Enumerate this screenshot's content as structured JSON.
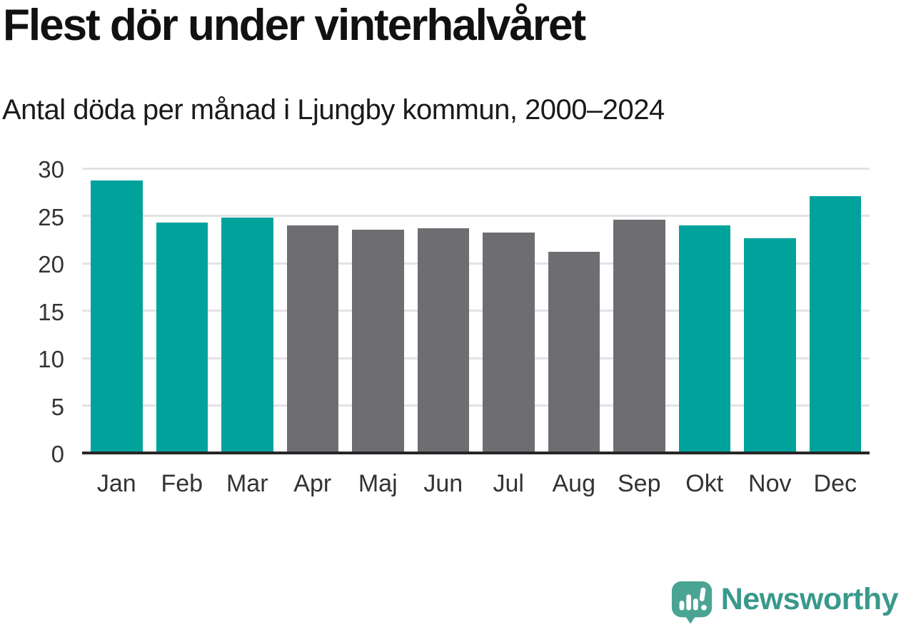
{
  "chart_data": {
    "type": "bar",
    "title": "Flest dör under vinterhalvåret",
    "subtitle": "Antal döda per månad i Ljungby kommun, 2000–2024",
    "categories": [
      "Jan",
      "Feb",
      "Mar",
      "Apr",
      "Maj",
      "Jun",
      "Jul",
      "Aug",
      "Sep",
      "Okt",
      "Nov",
      "Dec"
    ],
    "values": [
      28.7,
      24.3,
      24.8,
      24.0,
      23.5,
      23.7,
      23.2,
      21.2,
      24.6,
      24.0,
      22.6,
      27.1
    ],
    "bar_color_keys": [
      "winter",
      "winter",
      "winter",
      "summer",
      "summer",
      "summer",
      "summer",
      "summer",
      "summer",
      "winter",
      "winter",
      "winter"
    ],
    "palette": {
      "winter": "#00a39b",
      "summer": "#6e6e72"
    },
    "xlabel": "",
    "ylabel": "",
    "ylim": [
      0,
      30
    ],
    "yticks": [
      0,
      5,
      10,
      15,
      20,
      25,
      30
    ],
    "grid": true,
    "legend_position": "none",
    "gridline_color": "#e3e3e3",
    "axis_line_color": "#262626",
    "tick_label_color": "#333333"
  },
  "footer": {
    "brand": "Newsworthy",
    "brand_color": "#39998b",
    "icon": "newsworthy-logo-icon",
    "icon_color": "#4aa494"
  }
}
